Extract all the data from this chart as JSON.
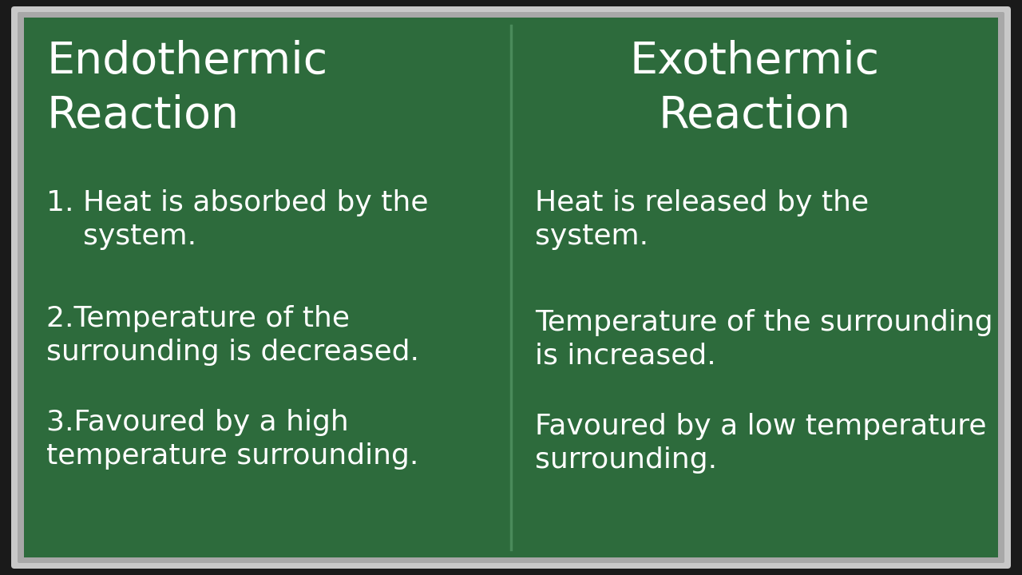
{
  "bg_color": "#1a1a1a",
  "board_color": "#2d6b3c",
  "metal_outer_color": "#c8c8c8",
  "metal_inner_color": "#a8a8a8",
  "divider_color": "#4a8a5a",
  "text_color": "#ffffff",
  "left_title_line1": "Endothermic",
  "left_title_line2": "Reaction",
  "right_title_line1": "Exothermic",
  "right_title_line2": "Reaction",
  "left_points": [
    "1. Heat is absorbed by the\n    system.",
    "2.Temperature of the\nsurrounding is decreased.",
    "3.Favoured by a high\ntemperature surrounding."
  ],
  "right_points": [
    "Heat is released by the\nsystem.",
    "Temperature of the surrounding\nis increased.",
    "Favoured by a low temperature\nsurrounding."
  ],
  "title_fontsize": 40,
  "body_fontsize": 26,
  "figsize": [
    12.8,
    7.2
  ]
}
